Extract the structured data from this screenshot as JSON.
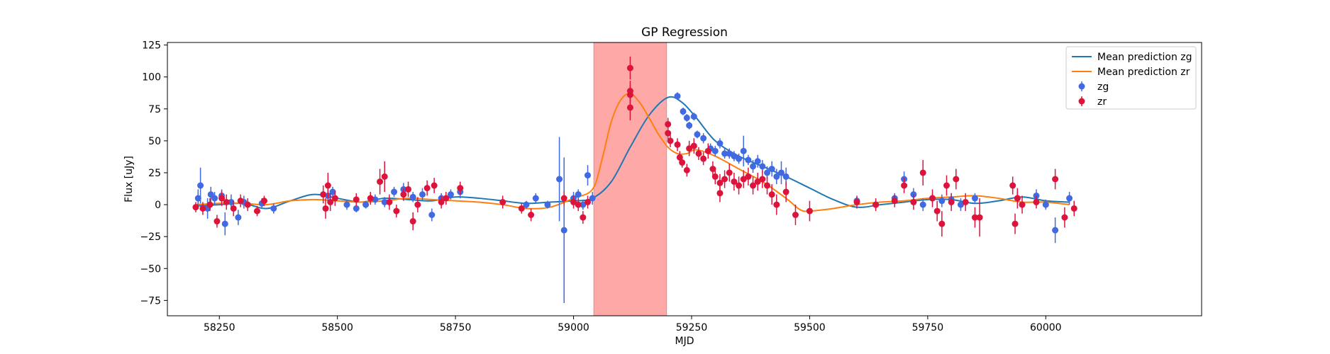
{
  "chart_data": {
    "type": "scatter",
    "title": "GP Regression",
    "xlabel": "MJD",
    "ylabel": "Flux [uJy]",
    "xlim": [
      58140,
      60330
    ],
    "ylim": [
      -87,
      127
    ],
    "xticks": [
      58250,
      58500,
      58750,
      59000,
      59250,
      59500,
      59750,
      60000
    ],
    "yticks": [
      -75,
      -50,
      -25,
      0,
      25,
      50,
      75,
      100,
      125
    ],
    "grid": false,
    "legend_placement": "top-right",
    "shaded_region": {
      "x_start": 59043,
      "x_end": 59197,
      "color": "#ffa8a8"
    },
    "series": [
      {
        "name": "Mean prediction zg",
        "kind": "line",
        "color": "#1f77b4",
        "x": [
          58200,
          58250,
          58300,
          58350,
          58400,
          58450,
          58500,
          58550,
          58600,
          58650,
          58700,
          58750,
          58800,
          58850,
          58900,
          58950,
          59000,
          59040,
          59080,
          59120,
          59160,
          59200,
          59230,
          59260,
          59300,
          59350,
          59400,
          59450,
          59500,
          59550,
          59600,
          59650,
          59700,
          59750,
          59800,
          59850,
          59900,
          59950,
          60000,
          60050
        ],
        "y": [
          -1,
          0,
          1,
          -3,
          3,
          8,
          5,
          2,
          5,
          4,
          3,
          6,
          5,
          3,
          1,
          2,
          3,
          5,
          18,
          45,
          70,
          84,
          80,
          68,
          50,
          38,
          30,
          22,
          13,
          4,
          -2,
          0,
          2,
          4,
          4,
          1,
          3,
          6,
          3,
          2
        ]
      },
      {
        "name": "Mean prediction zr",
        "kind": "line",
        "color": "#ff7f0e",
        "x": [
          58200,
          58250,
          58300,
          58350,
          58400,
          58450,
          58500,
          58550,
          58600,
          58650,
          58700,
          58750,
          58800,
          58850,
          58900,
          58950,
          59000,
          59040,
          59060,
          59080,
          59100,
          59120,
          59140,
          59160,
          59180,
          59200,
          59220,
          59240,
          59260,
          59300,
          59350,
          59400,
          59450,
          59480,
          59500,
          59550,
          59600,
          59650,
          59700,
          59750,
          59800,
          59850,
          59900,
          59950,
          60000,
          60050
        ],
        "y": [
          0,
          1,
          1,
          0,
          3,
          4,
          3,
          2,
          3,
          5,
          4,
          3,
          2,
          0,
          -3,
          -2,
          5,
          12,
          35,
          65,
          82,
          87,
          80,
          68,
          55,
          45,
          40,
          40,
          43,
          38,
          28,
          18,
          5,
          -4,
          -5,
          -3,
          0,
          2,
          3,
          5,
          6,
          7,
          5,
          2,
          2,
          0
        ]
      },
      {
        "name": "zg",
        "kind": "errorbar",
        "color": "#4169e1",
        "points": [
          [
            58205,
            5,
            7
          ],
          [
            58210,
            15,
            14
          ],
          [
            58225,
            -3,
            8
          ],
          [
            58232,
            8,
            6
          ],
          [
            58240,
            5,
            5
          ],
          [
            58255,
            7,
            5
          ],
          [
            58262,
            -15,
            9
          ],
          [
            58275,
            2,
            6
          ],
          [
            58290,
            -10,
            6
          ],
          [
            58302,
            2,
            5
          ],
          [
            58340,
            1,
            4
          ],
          [
            58365,
            -3,
            4
          ],
          [
            58480,
            7,
            5
          ],
          [
            58490,
            10,
            4
          ],
          [
            58520,
            0,
            4
          ],
          [
            58540,
            -3,
            3
          ],
          [
            58560,
            0,
            3
          ],
          [
            58580,
            4,
            4
          ],
          [
            58600,
            2,
            4
          ],
          [
            58620,
            10,
            4
          ],
          [
            58640,
            12,
            5
          ],
          [
            58660,
            6,
            4
          ],
          [
            58680,
            8,
            5
          ],
          [
            58700,
            -8,
            5
          ],
          [
            58720,
            5,
            4
          ],
          [
            58740,
            8,
            4
          ],
          [
            58760,
            10,
            5
          ],
          [
            58900,
            0,
            3
          ],
          [
            58920,
            5,
            4
          ],
          [
            58945,
            0,
            3
          ],
          [
            58970,
            20,
            33
          ],
          [
            58980,
            -20,
            57
          ],
          [
            59000,
            5,
            5
          ],
          [
            59010,
            8,
            4
          ],
          [
            59020,
            0,
            4
          ],
          [
            59030,
            23,
            8
          ],
          [
            59040,
            5,
            5
          ],
          [
            59220,
            85,
            3
          ],
          [
            59232,
            73,
            3
          ],
          [
            59240,
            68,
            3
          ],
          [
            59245,
            62,
            3
          ],
          [
            59255,
            69,
            3
          ],
          [
            59262,
            55,
            3
          ],
          [
            59275,
            52,
            4
          ],
          [
            59290,
            44,
            4
          ],
          [
            59300,
            42,
            4
          ],
          [
            59310,
            48,
            4
          ],
          [
            59320,
            40,
            4
          ],
          [
            59330,
            40,
            4
          ],
          [
            59340,
            38,
            4
          ],
          [
            59350,
            36,
            4
          ],
          [
            59360,
            42,
            12
          ],
          [
            59370,
            35,
            4
          ],
          [
            59380,
            30,
            5
          ],
          [
            59390,
            34,
            5
          ],
          [
            59400,
            30,
            5
          ],
          [
            59410,
            25,
            5
          ],
          [
            59420,
            28,
            6
          ],
          [
            59430,
            22,
            6
          ],
          [
            59440,
            25,
            9
          ],
          [
            59450,
            22,
            7
          ],
          [
            59600,
            3,
            3
          ],
          [
            59640,
            0,
            3
          ],
          [
            59680,
            5,
            4
          ],
          [
            59700,
            20,
            6
          ],
          [
            59720,
            8,
            5
          ],
          [
            59740,
            0,
            5
          ],
          [
            59760,
            5,
            4
          ],
          [
            59780,
            3,
            5
          ],
          [
            59800,
            4,
            5
          ],
          [
            59820,
            0,
            5
          ],
          [
            59850,
            5,
            4
          ],
          [
            59940,
            5,
            5
          ],
          [
            59980,
            7,
            5
          ],
          [
            60000,
            0,
            4
          ],
          [
            60020,
            -20,
            10
          ],
          [
            60050,
            5,
            5
          ]
        ]
      },
      {
        "name": "zr",
        "kind": "errorbar",
        "color": "#dc143c",
        "points": [
          [
            58200,
            -2,
            4
          ],
          [
            58215,
            -3,
            5
          ],
          [
            58230,
            0,
            5
          ],
          [
            58245,
            -13,
            5
          ],
          [
            58255,
            5,
            6
          ],
          [
            58265,
            2,
            6
          ],
          [
            58280,
            -3,
            6
          ],
          [
            58295,
            3,
            5
          ],
          [
            58310,
            0,
            5
          ],
          [
            58330,
            -5,
            4
          ],
          [
            58345,
            3,
            4
          ],
          [
            58470,
            8,
            7
          ],
          [
            58475,
            -3,
            8
          ],
          [
            58480,
            15,
            10
          ],
          [
            58485,
            2,
            7
          ],
          [
            58495,
            5,
            6
          ],
          [
            58540,
            4,
            5
          ],
          [
            58570,
            5,
            5
          ],
          [
            58590,
            18,
            10
          ],
          [
            58600,
            22,
            12
          ],
          [
            58610,
            2,
            6
          ],
          [
            58625,
            -5,
            5
          ],
          [
            58640,
            8,
            5
          ],
          [
            58650,
            12,
            6
          ],
          [
            58660,
            -13,
            7
          ],
          [
            58670,
            0,
            6
          ],
          [
            58690,
            13,
            6
          ],
          [
            58705,
            15,
            6
          ],
          [
            58720,
            2,
            5
          ],
          [
            58730,
            5,
            5
          ],
          [
            58760,
            13,
            5
          ],
          [
            58850,
            2,
            5
          ],
          [
            58890,
            -3,
            4
          ],
          [
            58910,
            -8,
            5
          ],
          [
            58980,
            5,
            6
          ],
          [
            59000,
            2,
            5
          ],
          [
            59010,
            0,
            5
          ],
          [
            59020,
            -10,
            5
          ],
          [
            59030,
            2,
            5
          ],
          [
            59120,
            107,
            9
          ],
          [
            59120,
            89,
            8
          ],
          [
            59120,
            86,
            8
          ],
          [
            59120,
            76,
            10
          ],
          [
            59200,
            63,
            5
          ],
          [
            59200,
            56,
            5
          ],
          [
            59205,
            50,
            5
          ],
          [
            59220,
            47,
            5
          ],
          [
            59225,
            37,
            5
          ],
          [
            59230,
            33,
            4
          ],
          [
            59240,
            27,
            5
          ],
          [
            59245,
            44,
            6
          ],
          [
            59255,
            46,
            6
          ],
          [
            59265,
            40,
            5
          ],
          [
            59275,
            36,
            5
          ],
          [
            59285,
            42,
            6
          ],
          [
            59295,
            28,
            6
          ],
          [
            59300,
            22,
            6
          ],
          [
            59310,
            17,
            7
          ],
          [
            59310,
            9,
            7
          ],
          [
            59320,
            20,
            7
          ],
          [
            59330,
            25,
            7
          ],
          [
            59340,
            18,
            7
          ],
          [
            59350,
            15,
            7
          ],
          [
            59360,
            20,
            7
          ],
          [
            59370,
            22,
            7
          ],
          [
            59380,
            15,
            7
          ],
          [
            59390,
            18,
            7
          ],
          [
            59400,
            20,
            7
          ],
          [
            59410,
            15,
            7
          ],
          [
            59420,
            8,
            8
          ],
          [
            59430,
            0,
            8
          ],
          [
            59450,
            10,
            8
          ],
          [
            59470,
            -8,
            8
          ],
          [
            59500,
            -5,
            8
          ],
          [
            59600,
            2,
            5
          ],
          [
            59640,
            0,
            5
          ],
          [
            59680,
            3,
            5
          ],
          [
            59700,
            15,
            6
          ],
          [
            59720,
            2,
            6
          ],
          [
            59740,
            25,
            10
          ],
          [
            59760,
            5,
            7
          ],
          [
            59770,
            -5,
            8
          ],
          [
            59780,
            -15,
            10
          ],
          [
            59790,
            15,
            8
          ],
          [
            59800,
            2,
            7
          ],
          [
            59810,
            20,
            8
          ],
          [
            59830,
            2,
            7
          ],
          [
            59850,
            -10,
            8
          ],
          [
            59860,
            -10,
            15
          ],
          [
            59930,
            15,
            7
          ],
          [
            59935,
            -15,
            8
          ],
          [
            59940,
            5,
            8
          ],
          [
            59950,
            0,
            7
          ],
          [
            59980,
            2,
            5
          ],
          [
            60020,
            20,
            8
          ],
          [
            60040,
            -10,
            8
          ],
          [
            60060,
            -3,
            6
          ]
        ]
      }
    ]
  }
}
